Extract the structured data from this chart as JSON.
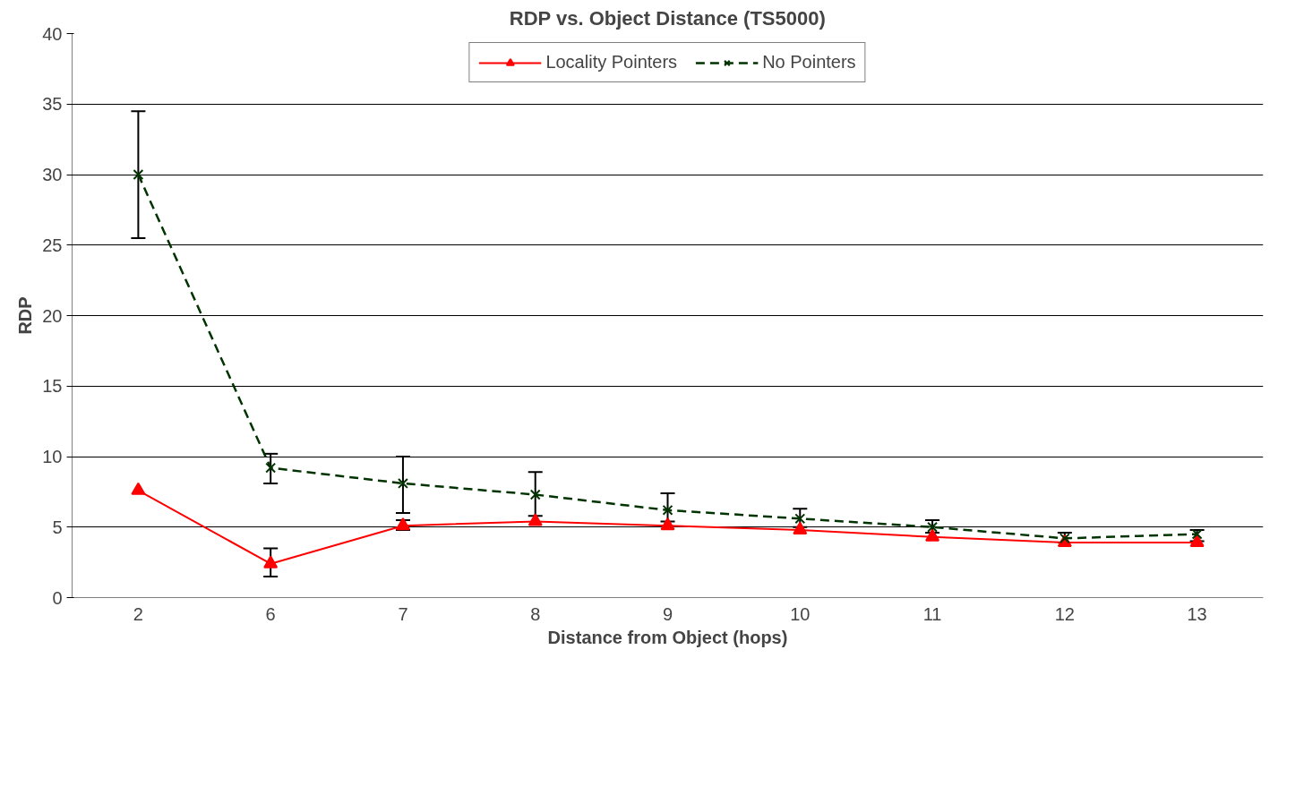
{
  "chart_data": {
    "type": "line",
    "title": "RDP vs. Object Distance (TS5000)",
    "xlabel": "Distance from Object (hops)",
    "ylabel": "RDP",
    "categories": [
      "2",
      "6",
      "7",
      "8",
      "9",
      "10",
      "11",
      "12",
      "13"
    ],
    "ylim": [
      0,
      40
    ],
    "yticks": [
      0,
      5,
      10,
      15,
      20,
      25,
      30,
      35,
      40
    ],
    "grid": "y",
    "legend": "top",
    "series": [
      {
        "name": "Locality Pointers",
        "color": "#ff0000",
        "marker": "triangle",
        "line_style": "solid",
        "values": [
          7.6,
          2.4,
          5.1,
          5.4,
          5.1,
          4.8,
          4.3,
          3.9,
          3.9
        ],
        "errors": [
          null,
          [
            1.5,
            3.5
          ],
          [
            4.8,
            5.5
          ],
          null,
          null,
          null,
          null,
          null,
          null
        ]
      },
      {
        "name": "No Pointers",
        "color": "#003300",
        "marker": "cross",
        "line_style": "dashed",
        "values": [
          30,
          9.2,
          8.1,
          7.3,
          6.2,
          5.6,
          5.0,
          4.2,
          4.5
        ],
        "errors": [
          [
            25.5,
            34.5
          ],
          [
            8.1,
            10.2
          ],
          [
            6.0,
            10.0
          ],
          [
            5.8,
            8.9
          ],
          [
            5.4,
            7.4
          ],
          [
            5.0,
            6.3
          ],
          [
            4.6,
            5.5
          ],
          [
            3.9,
            4.6
          ],
          [
            4.0,
            4.8
          ]
        ]
      }
    ]
  }
}
